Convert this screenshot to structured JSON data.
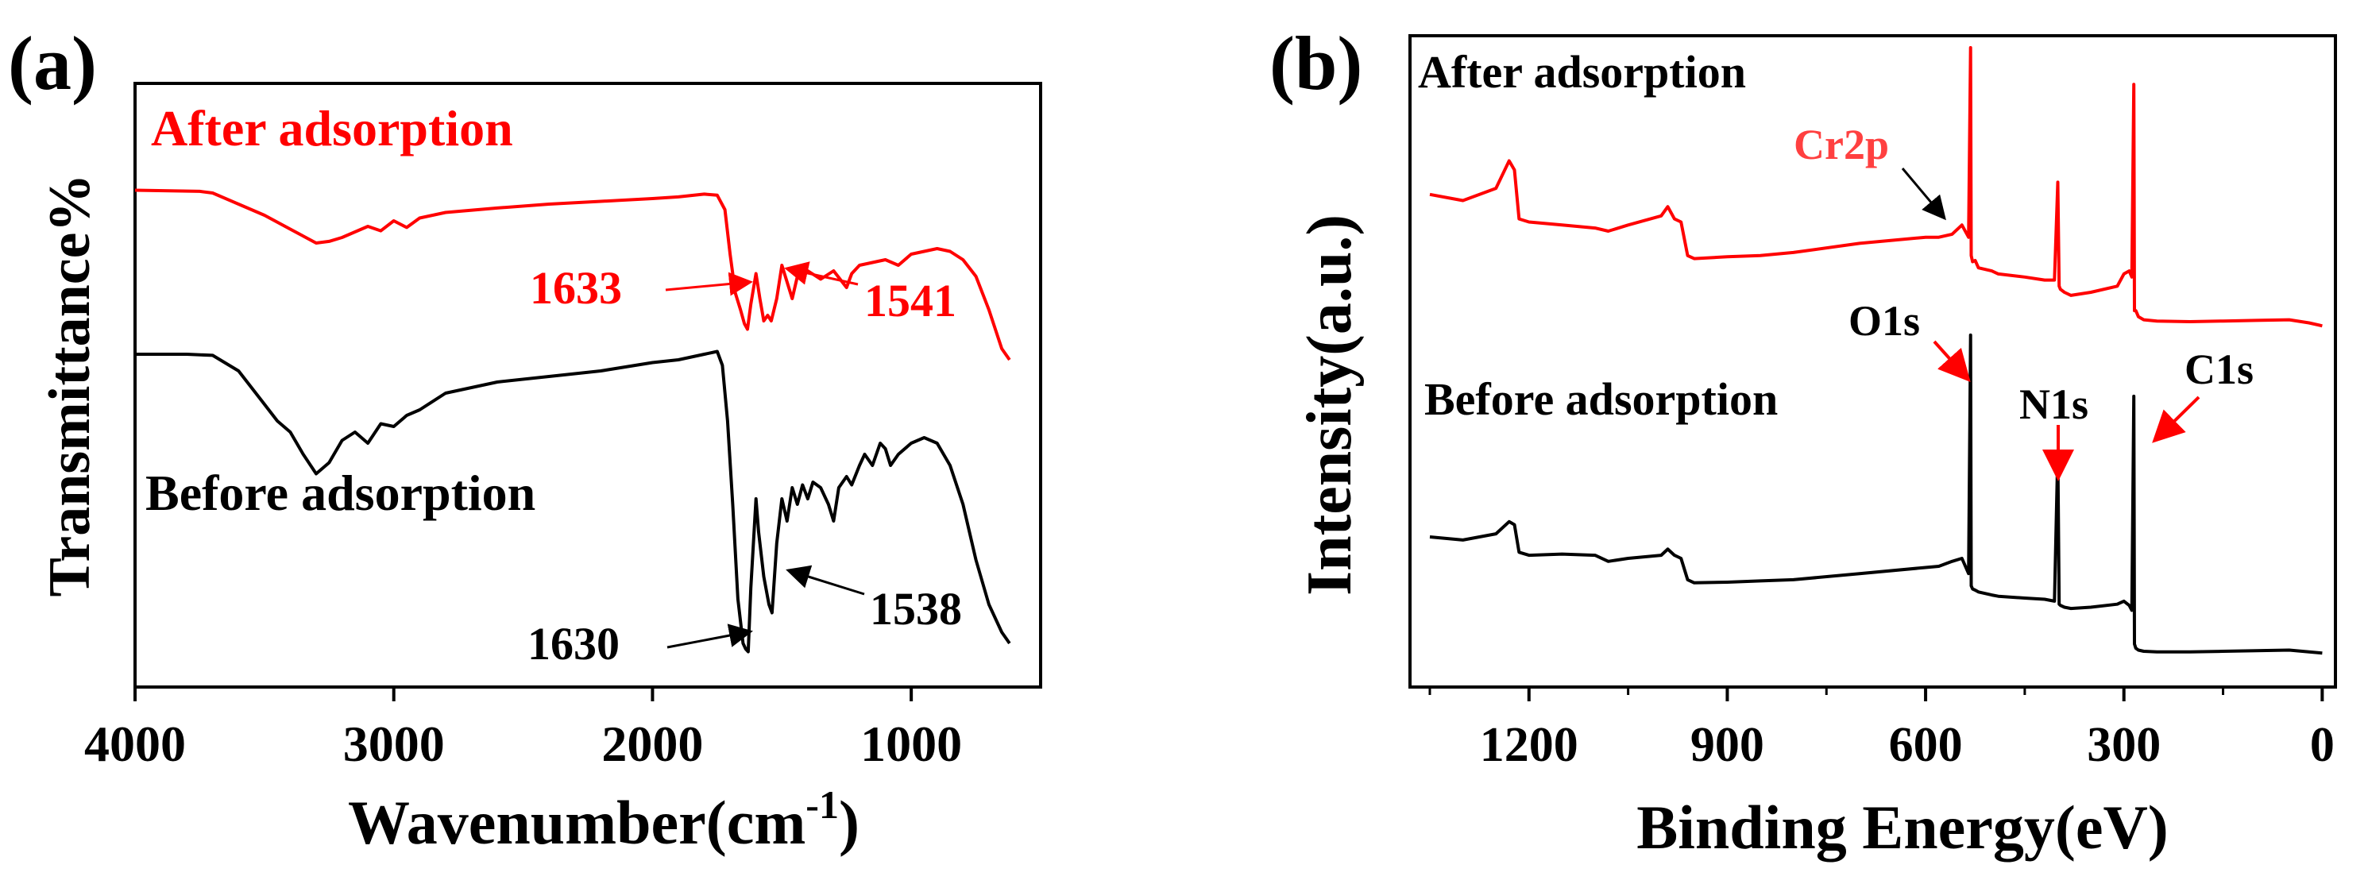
{
  "colors": {
    "after": "#ff0000",
    "before": "#000000",
    "axis": "#000000"
  },
  "chart_data": [
    {
      "panel_label": "(a)",
      "type": "line",
      "xlabel_main": "Wavenumber(cm",
      "xlabel_sup": "-1",
      "xlabel_close": ")",
      "ylabel": "Transmittance%",
      "xlim": [
        4000,
        500
      ],
      "ylim": [
        0,
        100
      ],
      "xticks": [
        4000,
        3000,
        2000,
        1000
      ],
      "xtick_labels": [
        "4000",
        "3000",
        "2000",
        "1000"
      ],
      "series": [
        {
          "name": "After adsorption",
          "color": "#ff0000",
          "x": [
            4000,
            3750,
            3700,
            3600,
            3500,
            3400,
            3300,
            3250,
            3200,
            3100,
            3050,
            3000,
            2950,
            2900,
            2800,
            2600,
            2400,
            2200,
            2000,
            1900,
            1800,
            1750,
            1720,
            1700,
            1680,
            1660,
            1645,
            1633,
            1620,
            1600,
            1585,
            1570,
            1555,
            1541,
            1520,
            1500,
            1480,
            1460,
            1440,
            1400,
            1350,
            1300,
            1250,
            1230,
            1200,
            1150,
            1100,
            1050,
            1000,
            950,
            900,
            850,
            800,
            750,
            700,
            650,
            620
          ],
          "y": [
            91.5,
            91.3,
            91.0,
            89.0,
            87.0,
            84.5,
            82.0,
            82.3,
            83.0,
            85.0,
            84.2,
            86.0,
            84.8,
            86.5,
            87.5,
            88.3,
            89.0,
            89.5,
            90.0,
            90.3,
            90.8,
            90.6,
            88.0,
            80.0,
            73.0,
            70.0,
            67.5,
            66.5,
            71.0,
            76.5,
            72.0,
            68.0,
            69.0,
            68.0,
            72.0,
            78.0,
            75.0,
            72.0,
            76.0,
            77.0,
            75.5,
            77.0,
            74.0,
            76.5,
            78.0,
            78.5,
            79.0,
            78.0,
            80.0,
            80.5,
            81.0,
            80.5,
            79.0,
            76.0,
            70.0,
            63.0,
            61.0
          ]
        },
        {
          "name": "Before adsorption",
          "color": "#000000",
          "x": [
            4000,
            3800,
            3700,
            3600,
            3500,
            3450,
            3400,
            3350,
            3300,
            3250,
            3200,
            3150,
            3100,
            3050,
            3000,
            2950,
            2900,
            2800,
            2600,
            2400,
            2200,
            2000,
            1900,
            1800,
            1750,
            1730,
            1710,
            1690,
            1670,
            1650,
            1640,
            1630,
            1620,
            1600,
            1590,
            1570,
            1550,
            1538,
            1520,
            1500,
            1480,
            1460,
            1440,
            1420,
            1400,
            1380,
            1350,
            1320,
            1300,
            1280,
            1250,
            1230,
            1200,
            1180,
            1150,
            1120,
            1100,
            1080,
            1050,
            1000,
            950,
            900,
            850,
            800,
            750,
            700,
            650,
            620
          ],
          "y": [
            62.0,
            62.0,
            61.8,
            59.0,
            53.0,
            50.0,
            48.0,
            44.0,
            40.5,
            42.5,
            46.5,
            48.0,
            46.0,
            49.5,
            49.0,
            51.0,
            52.0,
            55.0,
            57.0,
            58.0,
            59.0,
            60.5,
            61.0,
            62.0,
            62.5,
            60.0,
            50.0,
            35.0,
            18.0,
            10.0,
            9.0,
            8.5,
            20.0,
            36.0,
            30.0,
            22.0,
            17.0,
            15.5,
            28.0,
            36.0,
            32.0,
            38.0,
            35.0,
            38.5,
            36.0,
            39.0,
            38.0,
            35.0,
            32.0,
            38.0,
            40.0,
            38.5,
            42.0,
            44.0,
            42.0,
            46.0,
            45.0,
            42.0,
            44.0,
            46.0,
            47.0,
            46.0,
            42.0,
            35.0,
            25.0,
            17.0,
            12.0,
            10.0
          ]
        }
      ],
      "annotations": {
        "after_label": "After adsorption",
        "before_label": "Before adsorption",
        "peak_1633": "1633",
        "peak_1541": "1541",
        "peak_1630": "1630",
        "peak_1538": "1538"
      }
    },
    {
      "panel_label": "(b)",
      "type": "line",
      "xlabel": "Binding Energy(eV)",
      "ylabel": "Intensity(a.u.)",
      "xlim": [
        1380,
        -20
      ],
      "ylim": [
        0,
        100
      ],
      "xticks": [
        1200,
        900,
        600,
        300,
        0
      ],
      "xtick_labels": [
        "1200",
        "900",
        "600",
        "300",
        "0"
      ],
      "series": [
        {
          "name": "After adsorption",
          "color": "#ff0000",
          "x": [
            1350,
            1300,
            1250,
            1230,
            1222,
            1215,
            1200,
            1150,
            1100,
            1080,
            1050,
            1000,
            990,
            980,
            970,
            960,
            950,
            900,
            850,
            800,
            700,
            600,
            580,
            560,
            545,
            535,
            532,
            531,
            529,
            525,
            520,
            500,
            490,
            450,
            420,
            405,
            400,
            398,
            396,
            390,
            380,
            350,
            310,
            300,
            292,
            288,
            285,
            284,
            282,
            278,
            270,
            250,
            200,
            150,
            100,
            50,
            20,
            0
          ],
          "y": [
            76.0,
            75.0,
            77.0,
            81.5,
            80.0,
            72.0,
            71.5,
            71.0,
            70.5,
            70.0,
            71.0,
            72.5,
            74.0,
            72.0,
            71.5,
            66.0,
            65.5,
            65.8,
            66.0,
            66.5,
            68.0,
            69.0,
            69.0,
            69.5,
            71.0,
            69.0,
            100.0,
            66.0,
            65.0,
            65.2,
            64.0,
            63.5,
            63.0,
            62.5,
            62.0,
            62.0,
            78.0,
            61.0,
            60.5,
            60.0,
            59.5,
            60.0,
            61.0,
            63.0,
            63.5,
            62.5,
            94.0,
            57.0,
            57.0,
            56.0,
            55.5,
            55.3,
            55.2,
            55.3,
            55.4,
            55.5,
            55.0,
            54.5
          ]
        },
        {
          "name": "Before adsorption",
          "color": "#000000",
          "x": [
            1350,
            1300,
            1250,
            1230,
            1222,
            1215,
            1200,
            1150,
            1100,
            1080,
            1050,
            1000,
            990,
            980,
            970,
            960,
            950,
            900,
            850,
            800,
            700,
            600,
            580,
            560,
            545,
            535,
            532,
            531,
            529,
            525,
            520,
            500,
            490,
            450,
            420,
            405,
            400,
            398,
            396,
            390,
            380,
            350,
            310,
            300,
            292,
            288,
            285,
            284,
            282,
            278,
            270,
            250,
            200,
            150,
            100,
            50,
            20,
            0
          ],
          "y": [
            20.0,
            19.5,
            20.5,
            22.5,
            22.0,
            17.5,
            17.0,
            17.2,
            17.0,
            16.0,
            16.5,
            17.0,
            18.0,
            17.0,
            16.5,
            13.0,
            12.5,
            12.6,
            12.8,
            13.0,
            14.0,
            15.0,
            15.2,
            16.0,
            16.5,
            14.0,
            53.0,
            12.0,
            11.5,
            11.3,
            11.0,
            10.5,
            10.3,
            10.0,
            9.8,
            9.5,
            34.0,
            9.0,
            8.8,
            8.5,
            8.3,
            8.5,
            9.0,
            9.5,
            8.8,
            8.0,
            43.0,
            2.5,
            1.8,
            1.5,
            1.3,
            1.2,
            1.2,
            1.3,
            1.4,
            1.5,
            1.2,
            1.0
          ]
        }
      ],
      "annotations": {
        "after_label": "After adsorption",
        "before_label": "Before adsorption",
        "cr2p": "Cr2p",
        "o1s": "O1s",
        "n1s": "N1s",
        "c1s": "C1s"
      }
    }
  ]
}
